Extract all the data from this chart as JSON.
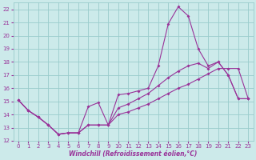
{
  "xlabel": "Windchill (Refroidissement éolien,°C)",
  "bg_color": "#cceaea",
  "grid_color": "#99cccc",
  "line_color": "#993399",
  "xlim": [
    -0.5,
    23.5
  ],
  "ylim": [
    12,
    22.5
  ],
  "yticks": [
    12,
    13,
    14,
    15,
    16,
    17,
    18,
    19,
    20,
    21,
    22
  ],
  "xticks": [
    0,
    1,
    2,
    3,
    4,
    5,
    6,
    7,
    8,
    9,
    10,
    11,
    12,
    13,
    14,
    15,
    16,
    17,
    18,
    19,
    20,
    21,
    22,
    23
  ],
  "line1_x": [
    0,
    1,
    2,
    3,
    4,
    5,
    6,
    7,
    8,
    9,
    10,
    11,
    12,
    13,
    14,
    15,
    16,
    17,
    18,
    19,
    20,
    21,
    22,
    23
  ],
  "line1_y": [
    15.1,
    14.3,
    13.8,
    13.2,
    12.5,
    12.6,
    12.6,
    14.6,
    14.9,
    13.2,
    15.5,
    15.6,
    15.8,
    16.0,
    17.7,
    20.9,
    22.2,
    21.5,
    19.0,
    17.7,
    18.0,
    17.0,
    15.2,
    15.2
  ],
  "line2_x": [
    0,
    1,
    2,
    3,
    4,
    5,
    6,
    7,
    8,
    9,
    10,
    11,
    12,
    13,
    14,
    15,
    16,
    17,
    18,
    19,
    20,
    21,
    22,
    23
  ],
  "line2_y": [
    15.1,
    14.3,
    13.8,
    13.2,
    12.5,
    12.6,
    12.6,
    13.2,
    13.2,
    13.2,
    14.0,
    14.2,
    14.5,
    14.8,
    15.2,
    15.6,
    16.0,
    16.3,
    16.7,
    17.1,
    17.5,
    17.5,
    17.5,
    15.2
  ],
  "line3_x": [
    0,
    1,
    2,
    3,
    4,
    5,
    6,
    7,
    8,
    9,
    10,
    11,
    12,
    13,
    14,
    15,
    16,
    17,
    18,
    19,
    20,
    21,
    22,
    23
  ],
  "line3_y": [
    15.1,
    14.3,
    13.8,
    13.2,
    12.5,
    12.6,
    12.6,
    13.2,
    13.2,
    13.2,
    14.5,
    14.8,
    15.2,
    15.6,
    16.2,
    16.8,
    17.3,
    17.7,
    17.9,
    17.5,
    18.0,
    17.0,
    15.2,
    15.2
  ],
  "tick_fontsize": 5,
  "xlabel_fontsize": 5.5,
  "marker_size": 2.0,
  "line_width": 0.8
}
